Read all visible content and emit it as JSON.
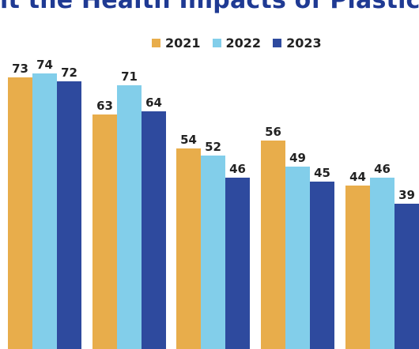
{
  "title": "it the Health Impacts of Plastic",
  "chart_data": {
    "type": "bar",
    "title": "it the Health Impacts of Plastic",
    "categories": [
      "",
      "",
      "",
      "",
      ""
    ],
    "series": [
      {
        "name": "2021",
        "values": [
          73,
          63,
          54,
          56,
          44
        ],
        "color": "#e8ad4b"
      },
      {
        "name": "2022",
        "values": [
          74,
          71,
          52,
          49,
          46
        ],
        "color": "#82ceea"
      },
      {
        "name": "2023",
        "values": [
          72,
          64,
          46,
          45,
          39
        ],
        "color": "#2e4a9e"
      }
    ],
    "legend": "top-center",
    "grid": false
  }
}
